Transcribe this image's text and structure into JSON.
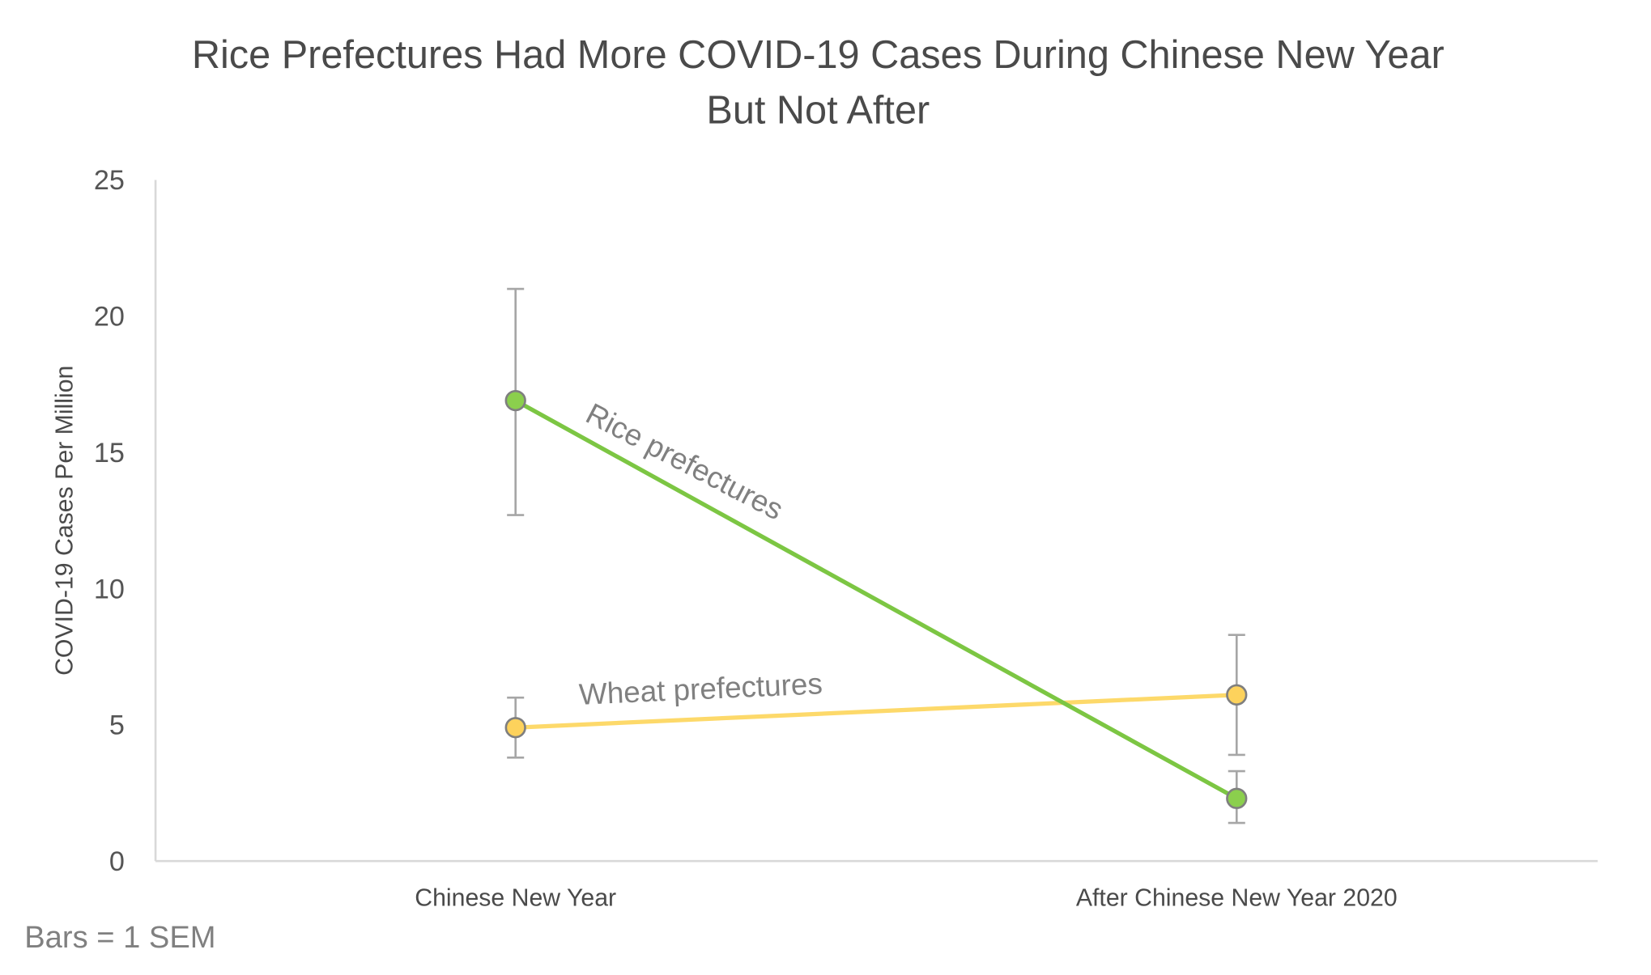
{
  "chart_data": {
    "type": "line",
    "title": "Rice Prefectures Had More COVID-19 Cases During Chinese New Year",
    "title_line1": "Rice Prefectures Had More COVID-19 Cases During Chinese New Year",
    "title_line2": "But Not After",
    "xlabel": "",
    "ylabel": "COVID-19 Cases Per Million",
    "categories": [
      "Chinese New Year",
      "After Chinese New Year 2020"
    ],
    "ylim": [
      0,
      25
    ],
    "yticks": [
      "0",
      "5",
      "10",
      "15",
      "20",
      "25"
    ],
    "grid": false,
    "legend": "inline labels on lines",
    "series": [
      {
        "name": "Rice prefectures",
        "color": "#7cc643",
        "marker_color": "#8bcf4d",
        "values": [
          16.9,
          2.3
        ],
        "error_upper": [
          21.0,
          3.3
        ],
        "error_lower": [
          12.7,
          1.4
        ]
      },
      {
        "name": "Wheat prefectures",
        "color": "#fdd96a",
        "marker_color": "#fdd25c",
        "values": [
          4.9,
          6.1
        ],
        "error_upper": [
          6.0,
          8.3
        ],
        "error_lower": [
          3.8,
          3.9
        ]
      }
    ],
    "annotations": [
      "Bars = 1 SEM"
    ]
  },
  "labels": {
    "rice": "Rice prefectures",
    "wheat": "Wheat prefectures",
    "note": "Bars = 1 SEM"
  }
}
